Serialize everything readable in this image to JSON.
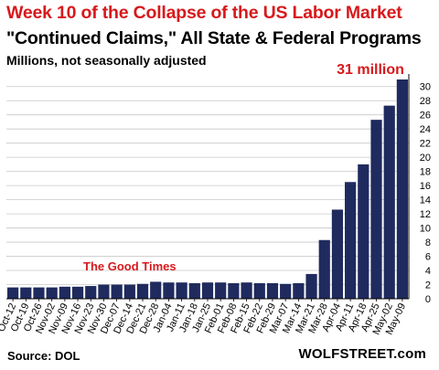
{
  "header": {
    "title": "Week 10 of the Collapse of the US Labor Market",
    "subtitle": "\"Continued Claims,\"  All State & Federal Programs",
    "units": "Millions, not seasonally adjusted"
  },
  "footer": {
    "source": "Source: DOL",
    "brand": "WOLFSTREET.com"
  },
  "colors": {
    "bar": "#1f2b5e",
    "accent": "#d7191c",
    "grid": "#c8c8c8",
    "axis": "#000000"
  },
  "chart_data": {
    "type": "bar",
    "categories": [
      "Oct-12",
      "Oct-19",
      "Oct-26",
      "Nov-02",
      "Nov-09",
      "Nov-16",
      "Nov-23",
      "Nov-30",
      "Dec-07",
      "Dec-14",
      "Dec-21",
      "Dec-28",
      "Jan-04",
      "Jan-11",
      "Jan-18",
      "Jan-25",
      "Feb-01",
      "Feb-08",
      "Feb-15",
      "Feb-22",
      "Feb-29",
      "Mar-07",
      "Mar-14",
      "Mar-21",
      "Mar-28",
      "Apr-04",
      "Apr-11",
      "Apr-18",
      "Apr-25",
      "May-02",
      "May-09"
    ],
    "values": [
      1.6,
      1.6,
      1.6,
      1.6,
      1.7,
      1.7,
      1.8,
      2.0,
      2.0,
      2.0,
      2.1,
      2.4,
      2.3,
      2.3,
      2.2,
      2.3,
      2.3,
      2.2,
      2.3,
      2.2,
      2.2,
      2.1,
      2.2,
      3.5,
      8.3,
      12.6,
      16.5,
      19.0,
      25.3,
      27.3,
      31.0
    ],
    "ylim": [
      0,
      31
    ],
    "yticks": [
      0,
      2,
      4,
      6,
      8,
      10,
      12,
      14,
      16,
      18,
      20,
      22,
      24,
      26,
      28,
      30
    ],
    "y_axis_position": "right",
    "grid": true,
    "annotations": [
      {
        "text": "The Good Times",
        "category": "Dec-14"
      },
      {
        "text": "31 million",
        "category": "May-09"
      }
    ]
  }
}
